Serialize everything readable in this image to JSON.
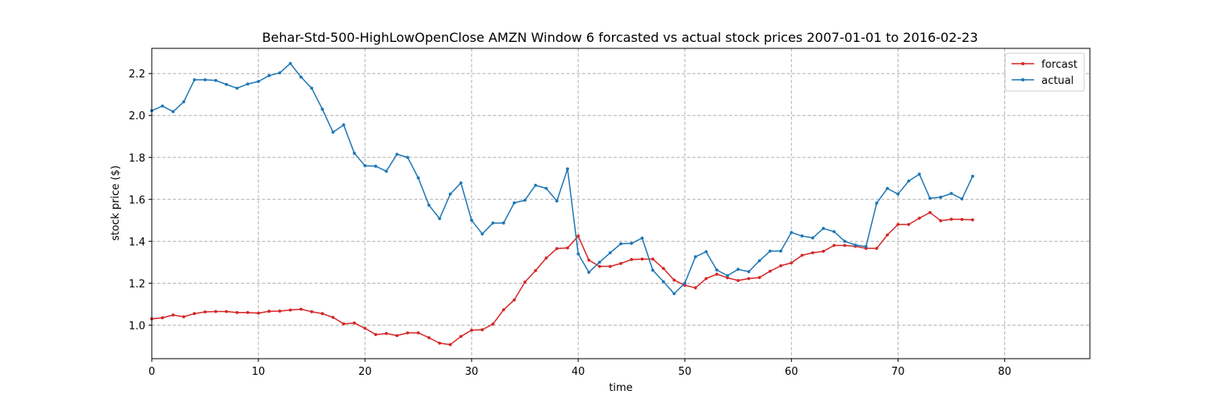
{
  "chart_data": {
    "type": "line",
    "title": "Behar-Std-500-HighLowOpenClose AMZN Window 6 forcasted vs actual stock prices 2007-01-01 to 2016-02-23",
    "xlabel": "time",
    "ylabel": "stock price ($)",
    "xlim": [
      0,
      88
    ],
    "ylim": [
      0.84,
      2.32
    ],
    "xticks": [
      0,
      10,
      20,
      30,
      40,
      50,
      60,
      70,
      80
    ],
    "yticks": [
      1.0,
      1.2,
      1.4,
      1.6,
      1.8,
      2.0,
      2.2
    ],
    "grid": true,
    "legend_position": "top-right",
    "series": [
      {
        "name": "forcast",
        "color": "#d62728",
        "values": [
          1.03,
          1.035,
          1.048,
          1.04,
          1.055,
          1.063,
          1.065,
          1.065,
          1.06,
          1.06,
          1.057,
          1.066,
          1.067,
          1.072,
          1.076,
          1.064,
          1.055,
          1.037,
          1.006,
          1.01,
          0.985,
          0.955,
          0.96,
          0.95,
          0.963,
          0.963,
          0.94,
          0.914,
          0.907,
          0.946,
          0.976,
          0.978,
          1.005,
          1.073,
          1.12,
          1.205,
          1.26,
          1.32,
          1.365,
          1.368,
          1.425,
          1.31,
          1.28,
          1.28,
          1.294,
          1.313,
          1.315,
          1.315,
          1.27,
          1.215,
          1.19,
          1.178,
          1.222,
          1.243,
          1.226,
          1.213,
          1.222,
          1.227,
          1.257,
          1.283,
          1.297,
          1.333,
          1.345,
          1.352,
          1.38,
          1.38,
          1.376,
          1.366,
          1.366,
          1.43,
          1.48,
          1.48,
          1.51,
          1.537,
          1.498,
          1.505,
          1.504,
          1.502
        ]
      },
      {
        "name": "actual",
        "color": "#1f77b4",
        "values": [
          2.023,
          2.045,
          2.018,
          2.065,
          2.17,
          2.17,
          2.167,
          2.148,
          2.13,
          2.15,
          2.162,
          2.19,
          2.203,
          2.248,
          2.183,
          2.13,
          2.03,
          1.92,
          1.955,
          1.82,
          1.76,
          1.758,
          1.734,
          1.815,
          1.8,
          1.702,
          1.572,
          1.508,
          1.625,
          1.678,
          1.5,
          1.435,
          1.487,
          1.487,
          1.583,
          1.596,
          1.667,
          1.652,
          1.592,
          1.745,
          1.34,
          1.252,
          1.3,
          1.345,
          1.388,
          1.39,
          1.415,
          1.262,
          1.207,
          1.15,
          1.2,
          1.326,
          1.35,
          1.263,
          1.236,
          1.266,
          1.255,
          1.307,
          1.353,
          1.353,
          1.442,
          1.425,
          1.416,
          1.461,
          1.446,
          1.4,
          1.382,
          1.375,
          1.582,
          1.652,
          1.625,
          1.687,
          1.72,
          1.605,
          1.61,
          1.628,
          1.602,
          1.71
        ]
      }
    ]
  }
}
